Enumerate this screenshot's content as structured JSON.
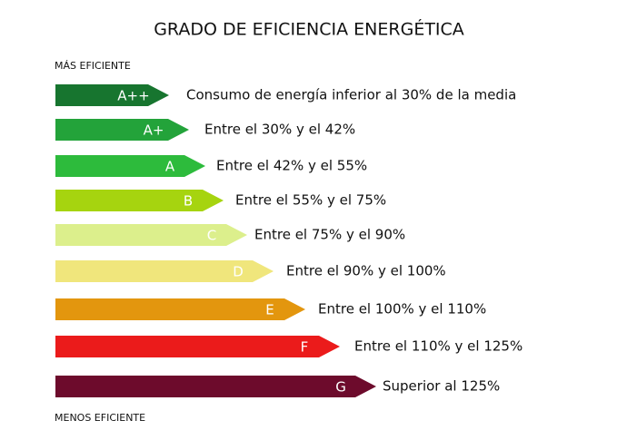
{
  "header": {
    "title": "GRADO DE EFICIENCIA ENERGÉTICA",
    "top_label": "MÁS EFICIENTE",
    "bottom_label": "MENOS EFICIENTE"
  },
  "rows": [
    {
      "grade": "A++",
      "description": "Consumo de energía inferior al 30% de la media"
    },
    {
      "grade": "A+",
      "description": "Entre el 30% y el 42%"
    },
    {
      "grade": "A",
      "description": "Entre el 42% y el 55%"
    },
    {
      "grade": "B",
      "description": "Entre el 55% y el 75%"
    },
    {
      "grade": "C",
      "description": "Entre el 75% y el 90%"
    },
    {
      "grade": "D",
      "description": "Entre el 90% y el 100%"
    },
    {
      "grade": "E",
      "description": "Entre el 100% y el 110%"
    },
    {
      "grade": "F",
      "description": "Entre el 110% y el 125%"
    },
    {
      "grade": "G",
      "description": "Superior al 125%"
    }
  ]
}
